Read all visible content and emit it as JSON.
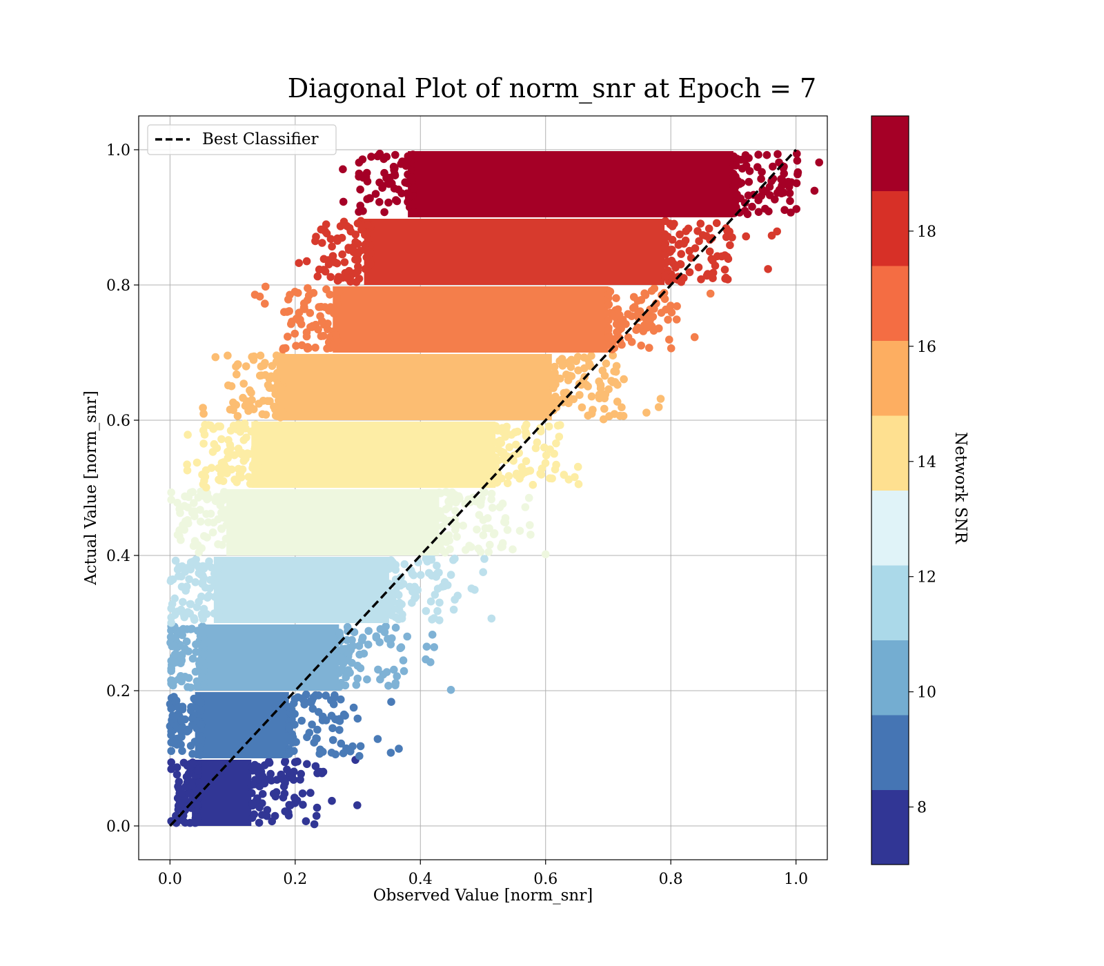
{
  "chart_data": {
    "type": "scatter",
    "title": "Diagonal Plot of norm_snr at Epoch = 7",
    "xlabel": "Observed Value [norm_snr]",
    "ylabel": "Actual Value [norm_snr]",
    "xlim": [
      -0.05,
      1.05
    ],
    "ylim": [
      -0.05,
      1.05
    ],
    "xticks": [
      "0.0",
      "0.2",
      "0.4",
      "0.6",
      "0.8",
      "1.0"
    ],
    "yticks": [
      "0.0",
      "0.2",
      "0.4",
      "0.6",
      "0.8",
      "1.0"
    ],
    "grid": true,
    "legend": {
      "placement": "top-left",
      "entries": [
        "Best Classifier"
      ]
    },
    "reference_line": {
      "name": "Best Classifier",
      "x": [
        0,
        1
      ],
      "y": [
        0,
        1
      ],
      "style": "dashed",
      "color": "#000000"
    },
    "colorbar": {
      "label": "Network SNR",
      "min": 7.0,
      "max": 20.0,
      "ticks": [
        "8",
        "10",
        "12",
        "14",
        "16",
        "18"
      ],
      "colors": [
        "#313695",
        "#4575b4",
        "#74add1",
        "#abd9e9",
        "#e0f3f8",
        "#fee090",
        "#fdae61",
        "#f46d43",
        "#d73027",
        "#a50026"
      ]
    },
    "bands": [
      {
        "snr": 7.6,
        "y": [
          0.0,
          0.1
        ],
        "x_main": [
          0.005,
          0.16
        ],
        "color": "#313695"
      },
      {
        "snr": 8.9,
        "y": [
          0.1,
          0.2
        ],
        "x_main": [
          0.01,
          0.22
        ],
        "color": "#4a7bb7"
      },
      {
        "snr": 10.3,
        "y": [
          0.2,
          0.3
        ],
        "x_main": [
          0.015,
          0.3
        ],
        "color": "#7fb2d5"
      },
      {
        "snr": 11.6,
        "y": [
          0.3,
          0.4
        ],
        "x_main": [
          0.04,
          0.38
        ],
        "color": "#bde0ec"
      },
      {
        "snr": 12.9,
        "y": [
          0.4,
          0.5
        ],
        "x_main": [
          0.06,
          0.46
        ],
        "color": "#eef7df"
      },
      {
        "snr": 14.2,
        "y": [
          0.5,
          0.6
        ],
        "x_main": [
          0.1,
          0.55
        ],
        "color": "#fdeda5"
      },
      {
        "snr": 15.5,
        "y": [
          0.6,
          0.7
        ],
        "x_main": [
          0.14,
          0.64
        ],
        "color": "#fcbd72"
      },
      {
        "snr": 16.8,
        "y": [
          0.7,
          0.8
        ],
        "x_main": [
          0.23,
          0.73
        ],
        "color": "#f47e4b"
      },
      {
        "snr": 18.1,
        "y": [
          0.8,
          0.9
        ],
        "x_main": [
          0.28,
          0.82
        ],
        "color": "#d73a2d"
      },
      {
        "snr": 19.4,
        "y": [
          0.9,
          1.0
        ],
        "x_main": [
          0.35,
          0.93
        ],
        "color": "#a50026"
      }
    ]
  }
}
